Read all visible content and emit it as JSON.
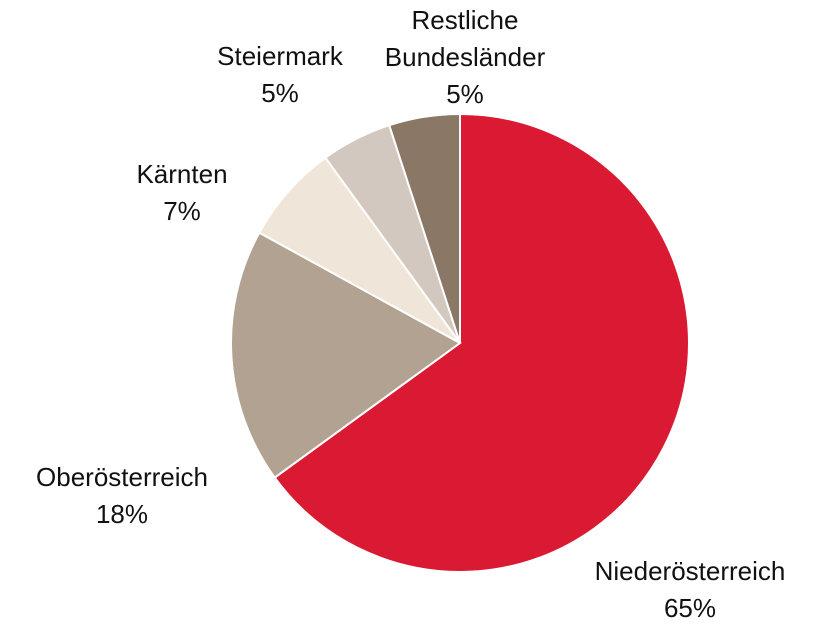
{
  "chart_data": {
    "type": "pie",
    "categories": [
      "Niederösterreich",
      "Oberösterreich",
      "Kärnten",
      "Steiermark",
      "Restliche Bundesländer"
    ],
    "values": [
      65,
      18,
      7,
      5,
      5
    ],
    "value_labels": [
      "65%",
      "18%",
      "7%",
      "5%",
      "5%"
    ],
    "colors": [
      "#da1a32",
      "#b2a292",
      "#efe6d9",
      "#d2c8bf",
      "#8b7765"
    ]
  }
}
